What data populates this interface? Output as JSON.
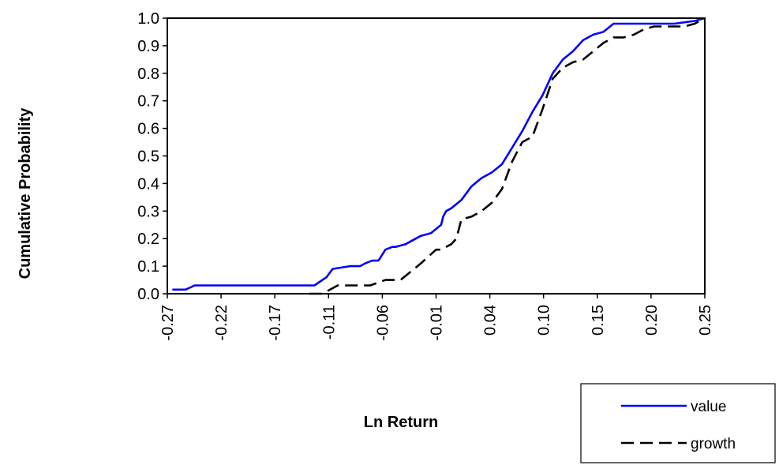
{
  "chart_data": {
    "type": "line",
    "title": "",
    "xlabel": "Ln Return",
    "ylabel": "Cumulative Probability",
    "xlim": [
      -0.28,
      0.25
    ],
    "ylim": [
      0.0,
      1.0
    ],
    "x_tick_labels": [
      "-0.27",
      "-0.22",
      "-0.17",
      "-0.11",
      "-0.06",
      "-0.01",
      "0.04",
      "0.10",
      "0.15",
      "0.20",
      "0.25"
    ],
    "y_tick_labels": [
      "0.0",
      "0.1",
      "0.2",
      "0.3",
      "0.4",
      "0.5",
      "0.6",
      "0.7",
      "0.8",
      "0.9",
      "1.0"
    ],
    "y_ticks": [
      0.0,
      0.1,
      0.2,
      0.3,
      0.4,
      0.5,
      0.6,
      0.7,
      0.8,
      0.9,
      1.0
    ],
    "grid": false,
    "legend_position": "bottom-right",
    "series": [
      {
        "name": "value",
        "color": "#0000ff",
        "style": "solid",
        "x": [
          -0.275,
          -0.262,
          -0.253,
          -0.24,
          -0.14,
          -0.135,
          -0.123,
          -0.117,
          -0.1,
          -0.09,
          -0.085,
          -0.078,
          -0.072,
          -0.07,
          -0.065,
          -0.058,
          -0.055,
          -0.045,
          -0.04,
          -0.03,
          -0.02,
          -0.01,
          -0.008,
          -0.005,
          0.0,
          0.01,
          0.02,
          0.03,
          0.04,
          0.05,
          0.06,
          0.07,
          0.08,
          0.09,
          0.1,
          0.11,
          0.12,
          0.13,
          0.14,
          0.15,
          0.16,
          0.18,
          0.2,
          0.22,
          0.24,
          0.25
        ],
        "y": [
          0.015,
          0.015,
          0.03,
          0.03,
          0.03,
          0.03,
          0.06,
          0.09,
          0.1,
          0.1,
          0.11,
          0.12,
          0.12,
          0.13,
          0.16,
          0.17,
          0.17,
          0.18,
          0.19,
          0.21,
          0.22,
          0.25,
          0.28,
          0.3,
          0.31,
          0.34,
          0.39,
          0.42,
          0.44,
          0.47,
          0.53,
          0.59,
          0.66,
          0.72,
          0.8,
          0.85,
          0.88,
          0.92,
          0.94,
          0.95,
          0.98,
          0.98,
          0.98,
          0.98,
          0.99,
          1.0
        ]
      },
      {
        "name": "growth",
        "color": "#000000",
        "style": "dashed",
        "x": [
          -0.14,
          -0.127,
          -0.112,
          -0.1,
          -0.08,
          -0.065,
          -0.06,
          -0.05,
          -0.04,
          -0.03,
          -0.015,
          -0.01,
          0.0,
          0.005,
          0.01,
          0.02,
          0.03,
          0.04,
          0.05,
          0.06,
          0.07,
          0.08,
          0.09,
          0.1,
          0.11,
          0.12,
          0.13,
          0.14,
          0.15,
          0.16,
          0.17,
          0.18,
          0.19,
          0.2,
          0.21,
          0.23,
          0.24,
          0.25
        ],
        "y": [
          0.0,
          0.0,
          0.03,
          0.03,
          0.03,
          0.05,
          0.05,
          0.05,
          0.08,
          0.11,
          0.16,
          0.16,
          0.18,
          0.2,
          0.27,
          0.28,
          0.3,
          0.33,
          0.38,
          0.48,
          0.55,
          0.57,
          0.67,
          0.78,
          0.82,
          0.84,
          0.85,
          0.88,
          0.91,
          0.93,
          0.93,
          0.94,
          0.96,
          0.97,
          0.97,
          0.97,
          0.98,
          1.0
        ]
      }
    ]
  }
}
